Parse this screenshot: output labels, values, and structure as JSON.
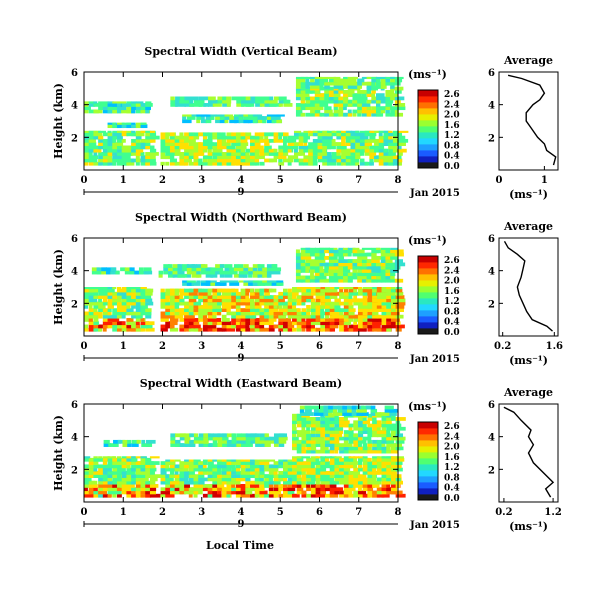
{
  "chart_data": [
    {
      "type": "heatmap",
      "title": "Spectral Width (Vertical Beam)",
      "ylabel": "Height (km)",
      "xlim": [
        0,
        8
      ],
      "ylim": [
        0,
        6
      ],
      "x_ticks": [
        "0",
        "1",
        "2",
        "3",
        "4",
        "5",
        "6",
        "7",
        "8"
      ],
      "y_ticks": [
        "2",
        "4",
        "6"
      ],
      "date_marker": "9",
      "date_label": "Jan 2015",
      "colorbar": {
        "unit": "(ms⁻¹)",
        "ticks": [
          "2.6",
          "2.4",
          "2.0",
          "1.6",
          "1.2",
          "0.8",
          "0.4",
          "0.0"
        ]
      },
      "average": {
        "title": "Average",
        "xlabel": "(ms⁻¹)",
        "xlim": [
          0,
          1.3
        ],
        "x_ticks": [
          "0",
          "1"
        ],
        "y_ticks": [
          "2",
          "4",
          "6"
        ],
        "profile": [
          [
            1.2,
            0.3
          ],
          [
            1.25,
            0.8
          ],
          [
            1.05,
            1.2
          ],
          [
            1.0,
            1.6
          ],
          [
            0.85,
            2.0
          ],
          [
            0.7,
            2.6
          ],
          [
            0.6,
            3.0
          ],
          [
            0.6,
            3.5
          ],
          [
            0.75,
            4.0
          ],
          [
            0.9,
            4.3
          ],
          [
            1.0,
            4.7
          ],
          [
            0.9,
            5.2
          ],
          [
            0.5,
            5.6
          ],
          [
            0.2,
            5.8
          ]
        ]
      }
    },
    {
      "type": "heatmap",
      "title": "Spectral Width (Northward Beam)",
      "ylabel": "Height (km)",
      "xlim": [
        0,
        8
      ],
      "ylim": [
        0,
        6
      ],
      "x_ticks": [
        "0",
        "1",
        "2",
        "3",
        "4",
        "5",
        "6",
        "7",
        "8"
      ],
      "y_ticks": [
        "2",
        "4",
        "6"
      ],
      "date_marker": "9",
      "date_label": "Jan 2015",
      "colorbar": {
        "unit": "(ms⁻¹)",
        "ticks": [
          "2.6",
          "2.4",
          "2.0",
          "1.6",
          "1.2",
          "0.8",
          "0.4",
          "0.0"
        ]
      },
      "average": {
        "title": "Average",
        "xlabel": "(ms⁻¹)",
        "xlim": [
          0.1,
          1.7
        ],
        "x_ticks": [
          "0.2",
          "1.6"
        ],
        "y_ticks": [
          "2",
          "4",
          "6"
        ],
        "profile": [
          [
            1.55,
            0.3
          ],
          [
            1.4,
            0.6
          ],
          [
            1.0,
            1.0
          ],
          [
            0.85,
            1.5
          ],
          [
            0.75,
            2.0
          ],
          [
            0.65,
            2.5
          ],
          [
            0.6,
            3.0
          ],
          [
            0.7,
            3.6
          ],
          [
            0.75,
            4.1
          ],
          [
            0.8,
            4.6
          ],
          [
            0.6,
            5.0
          ],
          [
            0.35,
            5.4
          ],
          [
            0.25,
            5.8
          ]
        ]
      }
    },
    {
      "type": "heatmap",
      "title": "Spectral Width (Eastward Beam)",
      "ylabel": "Height (km)",
      "xlabel": "Local Time",
      "xlim": [
        0,
        8
      ],
      "ylim": [
        0,
        6
      ],
      "x_ticks": [
        "0",
        "1",
        "2",
        "3",
        "4",
        "5",
        "6",
        "7",
        "8"
      ],
      "y_ticks": [
        "2",
        "4",
        "6"
      ],
      "date_marker": "9",
      "date_label": "Jan 2015",
      "colorbar": {
        "unit": "(ms⁻¹)",
        "ticks": [
          "2.6",
          "2.4",
          "2.0",
          "1.6",
          "1.2",
          "0.8",
          "0.4",
          "0.0"
        ]
      },
      "average": {
        "title": "Average",
        "xlabel": "(ms⁻¹)",
        "xlim": [
          0.1,
          1.3
        ],
        "x_ticks": [
          "0.2",
          "1.2"
        ],
        "y_ticks": [
          "2",
          "4",
          "6"
        ],
        "profile": [
          [
            1.15,
            0.3
          ],
          [
            1.05,
            0.8
          ],
          [
            1.2,
            1.2
          ],
          [
            1.0,
            1.8
          ],
          [
            0.8,
            2.4
          ],
          [
            0.7,
            3.0
          ],
          [
            0.8,
            3.5
          ],
          [
            0.7,
            4.0
          ],
          [
            0.75,
            4.4
          ],
          [
            0.55,
            5.0
          ],
          [
            0.4,
            5.5
          ],
          [
            0.2,
            5.8
          ]
        ]
      }
    }
  ]
}
